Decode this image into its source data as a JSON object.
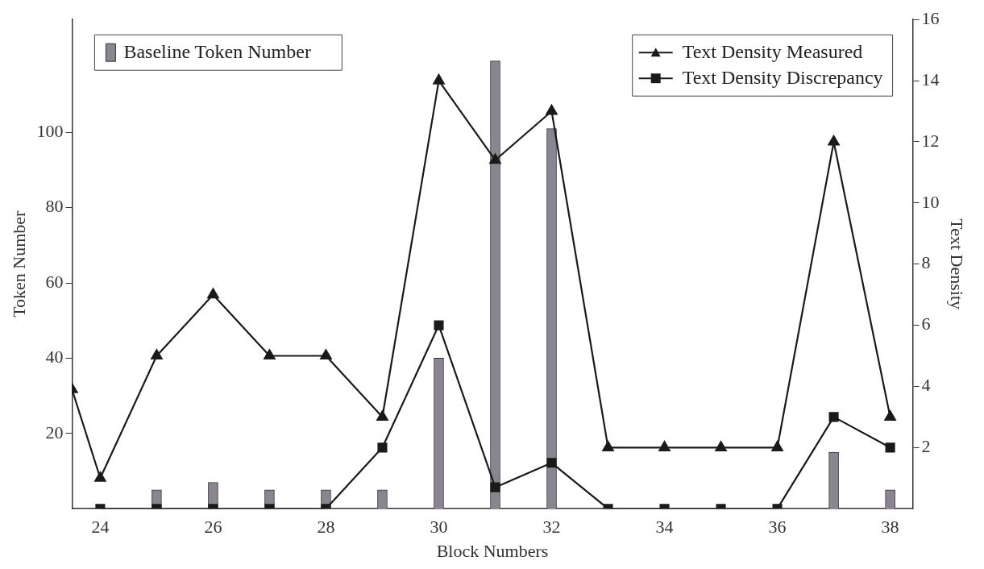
{
  "chart_data": {
    "type": "bar",
    "xlabel": "Block Numbers",
    "ylabel": "Token Number",
    "y2label": "Text Density",
    "x": [
      24,
      25,
      26,
      27,
      28,
      29,
      30,
      31,
      32,
      33,
      34,
      35,
      36,
      37,
      38
    ],
    "xlim": [
      23.5,
      38.4
    ],
    "xticks": [
      24,
      26,
      28,
      30,
      32,
      34,
      36,
      38
    ],
    "ylim": [
      0,
      130
    ],
    "yticks": [
      20,
      40,
      60,
      80,
      100
    ],
    "y2lim": [
      0,
      16
    ],
    "y2ticks": [
      2,
      4,
      6,
      8,
      10,
      12,
      14,
      16
    ],
    "legend": "top",
    "grid": false,
    "series": [
      {
        "name": "Baseline Token Number",
        "color": "#8a8590",
        "values": [
          0,
          5,
          7,
          5,
          5,
          5,
          40,
          119,
          101,
          null,
          null,
          null,
          null,
          15,
          5
        ]
      },
      {
        "name": "Text Density Measured",
        "type": "line",
        "axis": "y2",
        "color": "#1a1a1a",
        "marker": "triangle",
        "x": [
          23.5,
          24,
          25,
          26,
          27,
          28,
          29,
          30,
          31,
          32,
          33,
          34,
          35,
          36,
          37,
          38
        ],
        "values": [
          3.9,
          1,
          5,
          7,
          5,
          5,
          3,
          14,
          11.4,
          13,
          2,
          2,
          2,
          2,
          12,
          3
        ]
      },
      {
        "name": "Text Density Discrepancy",
        "type": "line",
        "axis": "y2",
        "color": "#1a1a1a",
        "marker": "square",
        "values": [
          0,
          0,
          0,
          0,
          0,
          2,
          6,
          0.7,
          1.5,
          0,
          0,
          0,
          0,
          3,
          2
        ]
      }
    ]
  }
}
